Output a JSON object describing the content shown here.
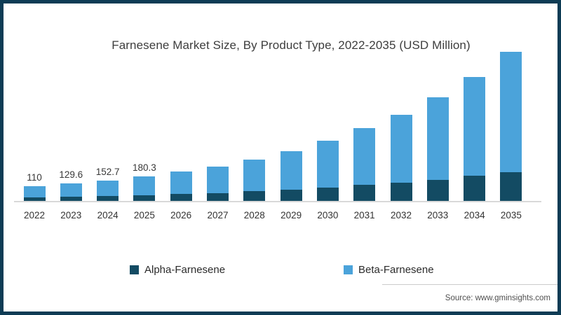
{
  "page": {
    "background": "#ffffff",
    "frame_color": "#0e3c55"
  },
  "chart_data": {
    "type": "bar",
    "stacked": true,
    "title": "Farnesene Market Size, By Product Type, 2022-2035 (USD Million)",
    "unit": "USD Million",
    "categories": [
      "2022",
      "2023",
      "2024",
      "2025",
      "2026",
      "2027",
      "2028",
      "2029",
      "2030",
      "2031",
      "2032",
      "2033",
      "2034",
      "2035"
    ],
    "series": [
      {
        "name": "Alpha-Farnesene",
        "color": "#134b63",
        "values": [
          28,
          32,
          37,
          43,
          51,
          59,
          71,
          84,
          98,
          118,
          136,
          158,
          184,
          212
        ]
      },
      {
        "name": "Beta-Farnesene",
        "color": "#4ba3da",
        "values": [
          82,
          97.6,
          115.7,
          137.3,
          167,
          195,
          235,
          286,
          346,
          421,
          503,
          611,
          735,
          893
        ]
      }
    ],
    "totals": [
      110,
      129.6,
      152.7,
      180.3,
      218,
      254,
      306,
      370,
      444,
      539,
      639,
      769,
      919,
      1105
    ],
    "data_labels": [
      "110",
      "129.6",
      "152.7",
      "180.3",
      "",
      "",
      "",
      "",
      "",
      "",
      "",
      "",
      "",
      ""
    ],
    "ylim": [
      0,
      1105
    ],
    "grid": false,
    "legend_position": "bottom",
    "axis_line_color": "#d9d9d9",
    "label_color": "#383838"
  },
  "source": {
    "text": "Source: www.gminsights.com"
  }
}
